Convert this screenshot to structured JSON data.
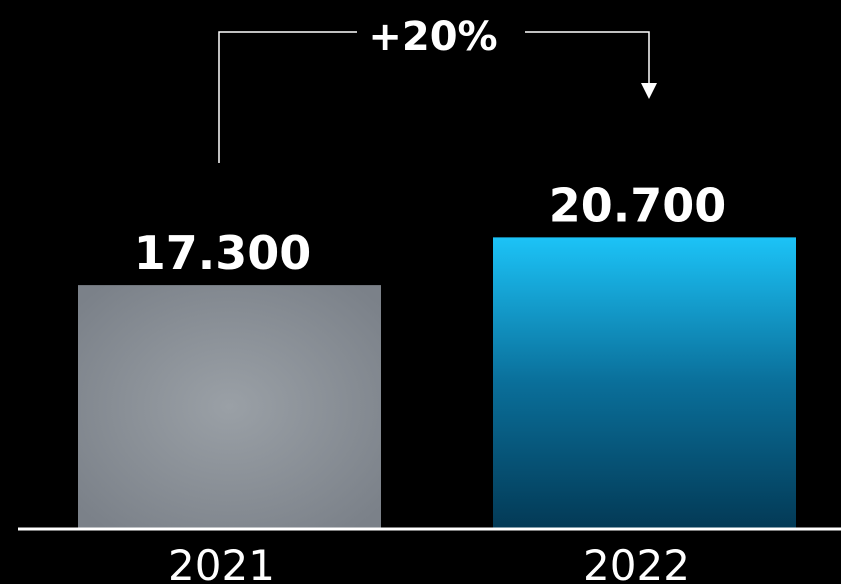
{
  "chart_data": {
    "type": "bar",
    "categories": [
      "2021",
      "2022"
    ],
    "values": [
      17300,
      20700
    ],
    "value_labels": [
      "17.300",
      "20.700"
    ],
    "annotation": {
      "text": "+20%",
      "from": "2021",
      "to": "2022"
    },
    "ylim": [
      0,
      25000
    ],
    "grid": false,
    "legend": "none",
    "colors": {
      "bar_2021": [
        "#9aa0a6",
        "#7b8189"
      ],
      "bar_2022": [
        "#1cc3f7",
        "#033a56"
      ],
      "axis": "#ffffff",
      "background": "#000000"
    }
  }
}
